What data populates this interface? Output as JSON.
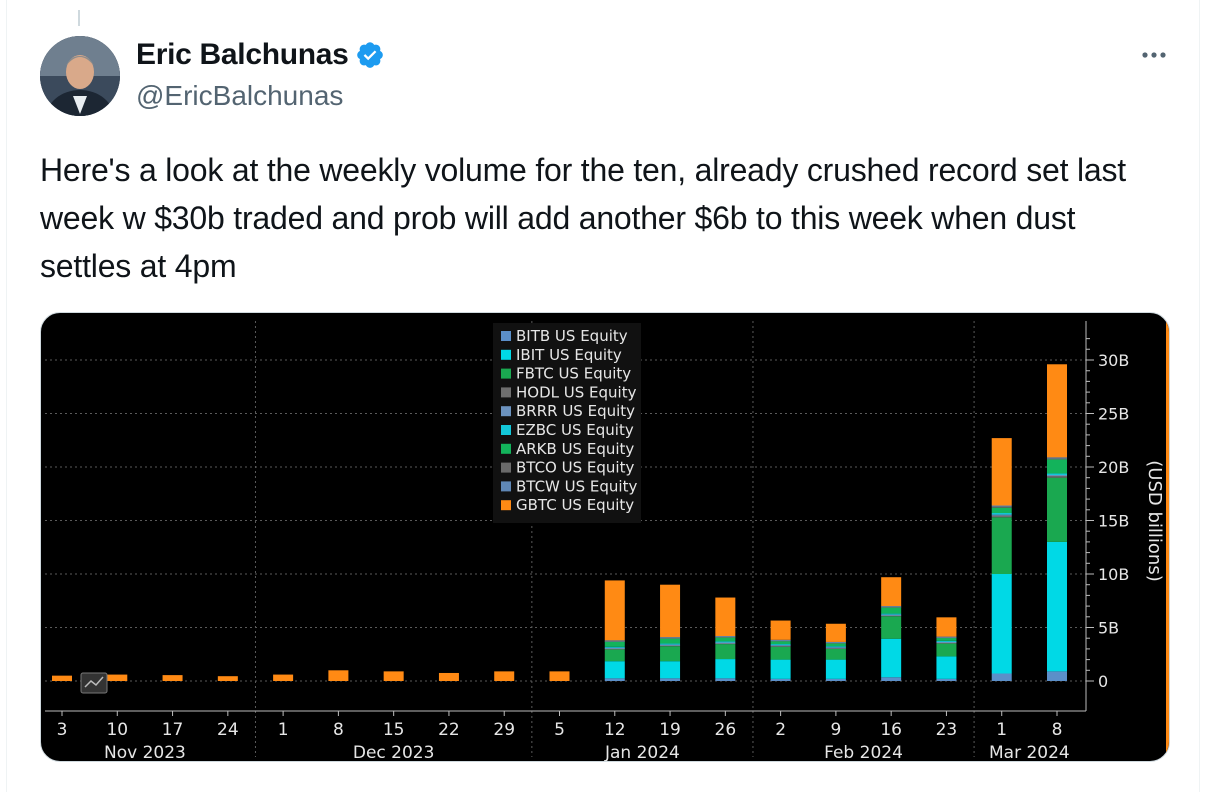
{
  "tweet": {
    "author_name": "Eric Balchunas",
    "author_handle": "@EricBalchunas",
    "verified_icon": "verified-badge-icon",
    "more_icon": "more-options-icon",
    "text": "Here's a look at the weekly volume for the ten, already crushed record set last week w $30b traded and prob will add another $6b to this week when dust settles at 4pm"
  },
  "colors": {
    "verified_blue": "#1d9bf0",
    "BITB": "#5b8fc9",
    "IBIT": "#00d9e6",
    "FBTC": "#1aa850",
    "HODL": "#6e6e6e",
    "BRRR": "#6c93bf",
    "EZBC": "#13c7d9",
    "ARKB": "#13b35b",
    "BTCO": "#6a6a6a",
    "BTCW": "#5f87b5",
    "GBTC": "#ff8a14"
  },
  "chart_data": {
    "type": "bar",
    "stacked": true,
    "ylabel": "(USD billions)",
    "ylim": [
      -2.5,
      33
    ],
    "yticks": [
      "0",
      "5B",
      "10B",
      "15B",
      "20B",
      "25B",
      "30B"
    ],
    "ytick_values": [
      0,
      5,
      10,
      15,
      20,
      25,
      30
    ],
    "legend_position": "top-center",
    "grid": true,
    "categories": [
      "3",
      "10",
      "17",
      "24",
      "1",
      "8",
      "15",
      "22",
      "29",
      "5",
      "12",
      "19",
      "26",
      "2",
      "9",
      "16",
      "23",
      "1",
      "8"
    ],
    "month_labels": [
      {
        "label": "Nov 2023",
        "span": [
          "3",
          "24"
        ]
      },
      {
        "label": "Dec 2023",
        "span": [
          "1",
          "29"
        ]
      },
      {
        "label": "Jan 2024",
        "span": [
          "5",
          "26"
        ]
      },
      {
        "label": "Feb 2024",
        "span": [
          "2",
          "23"
        ]
      },
      {
        "label": "Mar 2024",
        "span": [
          "1",
          "8"
        ]
      }
    ],
    "series": [
      {
        "name": "BITB US Equity",
        "key": "BITB",
        "values": [
          0,
          0,
          0,
          0,
          0,
          0,
          0,
          0,
          0,
          0,
          0.25,
          0.25,
          0.25,
          0.2,
          0.2,
          0.35,
          0.2,
          0.7,
          0.9
        ]
      },
      {
        "name": "IBIT US Equity",
        "key": "IBIT",
        "values": [
          0,
          0,
          0,
          0,
          0,
          0,
          0,
          0,
          0,
          0,
          1.6,
          1.6,
          1.8,
          1.8,
          1.8,
          3.6,
          2.1,
          9.3,
          12.1
        ]
      },
      {
        "name": "FBTC US Equity",
        "key": "FBTC",
        "values": [
          0,
          0,
          0,
          0,
          0,
          0,
          0,
          0,
          0,
          0,
          1.1,
          1.4,
          1.4,
          1.2,
          1.0,
          2.1,
          1.2,
          5.3,
          6.0
        ]
      },
      {
        "name": "HODL US Equity",
        "key": "HODL",
        "values": [
          0,
          0,
          0,
          0,
          0,
          0,
          0,
          0,
          0,
          0,
          0.1,
          0.1,
          0.1,
          0.1,
          0.1,
          0.1,
          0.1,
          0.15,
          0.15
        ]
      },
      {
        "name": "BRRR US Equity",
        "key": "BRRR",
        "values": [
          0,
          0,
          0,
          0,
          0,
          0,
          0,
          0,
          0,
          0,
          0.05,
          0.05,
          0.05,
          0.05,
          0.05,
          0.05,
          0.05,
          0.1,
          0.1
        ]
      },
      {
        "name": "EZBC US Equity",
        "key": "EZBC",
        "values": [
          0,
          0,
          0,
          0,
          0,
          0,
          0,
          0,
          0,
          0,
          0.1,
          0.1,
          0.1,
          0.1,
          0.1,
          0.1,
          0.1,
          0.15,
          0.15
        ]
      },
      {
        "name": "ARKB US Equity",
        "key": "ARKB",
        "values": [
          0,
          0,
          0,
          0,
          0,
          0,
          0,
          0,
          0,
          0,
          0.5,
          0.5,
          0.4,
          0.3,
          0.3,
          0.6,
          0.3,
          0.5,
          1.3
        ]
      },
      {
        "name": "BTCO US Equity",
        "key": "BTCO",
        "values": [
          0,
          0,
          0,
          0,
          0,
          0,
          0,
          0,
          0,
          0,
          0.05,
          0.05,
          0.05,
          0.05,
          0.05,
          0.05,
          0.05,
          0.1,
          0.1
        ]
      },
      {
        "name": "BTCW US Equity",
        "key": "BTCW",
        "values": [
          0,
          0,
          0,
          0,
          0,
          0,
          0,
          0,
          0,
          0,
          0.05,
          0.05,
          0.05,
          0.05,
          0.05,
          0.05,
          0.05,
          0.1,
          0.1
        ]
      },
      {
        "name": "GBTC US Equity",
        "key": "GBTC",
        "values": [
          0.5,
          0.6,
          0.55,
          0.45,
          0.6,
          1.0,
          0.9,
          0.75,
          0.9,
          0.9,
          5.6,
          4.9,
          3.6,
          1.8,
          1.7,
          2.7,
          1.8,
          6.3,
          8.7
        ]
      }
    ]
  }
}
